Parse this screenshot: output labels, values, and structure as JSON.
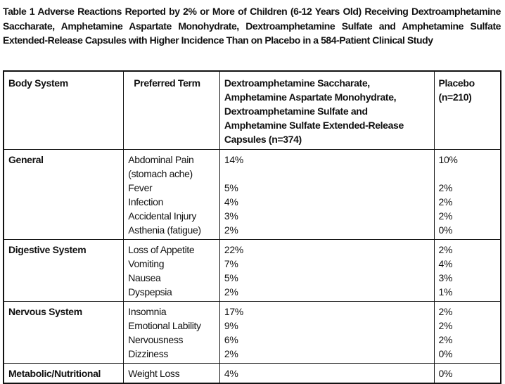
{
  "title": "Table 1 Adverse Reactions Reported by 2% or More of Children (6-12 Years Old) Receiving Dextroamphetamine Saccharate, Amphetamine Aspartate Monohydrate, Dextroamphetamine Sulfate and Amphetamine Sulfate Extended-Release Capsules with Higher Incidence Than on Placebo in a 584-Patient Clinical Study",
  "table": {
    "header": [
      "Body System",
      "Preferred Term",
      "Dextroamphetamine Saccharate, Amphetamine Aspartate Monohydrate, Dextroamphetamine Sulfate and Amphetamine Sulfate Extended-Release Capsules (n=374)",
      "Placebo (n=210)"
    ],
    "groups": [
      {
        "body_system": "General",
        "rows": [
          [
            "Abdominal Pain (stomach ache)",
            "14%",
            "10%"
          ],
          [
            "Fever",
            "5%",
            "2%"
          ],
          [
            "Infection",
            "4%",
            "2%"
          ],
          [
            "Accidental Injury",
            "3%",
            "2%"
          ],
          [
            "Asthenia (fatigue)",
            "2%",
            "0%"
          ]
        ]
      },
      {
        "body_system": "Digestive System",
        "rows": [
          [
            "Loss of Appetite",
            "22%",
            "2%"
          ],
          [
            "Vomiting",
            "7%",
            "4%"
          ],
          [
            "Nausea",
            "5%",
            "3%"
          ],
          [
            "Dyspepsia",
            "2%",
            "1%"
          ]
        ]
      },
      {
        "body_system": "Nervous System",
        "rows": [
          [
            "Insomnia",
            "17%",
            "2%"
          ],
          [
            "Emotional Lability",
            "9%",
            "2%"
          ],
          [
            "Nervousness",
            "6%",
            "2%"
          ],
          [
            "Dizziness",
            "2%",
            "0%"
          ]
        ]
      },
      {
        "body_system": "Metabolic/Nutritional",
        "rows": [
          [
            "Weight Loss",
            "4%",
            "0%"
          ]
        ]
      }
    ]
  }
}
